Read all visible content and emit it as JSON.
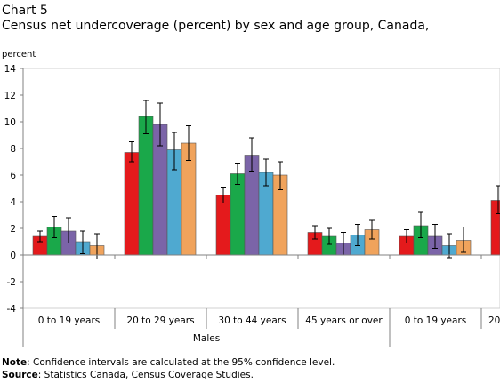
{
  "header": {
    "chart_label": "Chart 5",
    "title": "Census net undercoverage (percent) by sex and age group, Canada,"
  },
  "footer": {
    "note_label": "Note",
    "note_text": ": Confidence intervals are calculated at the 95% confidence level.",
    "source_label": "Source",
    "source_text": ": Statistics Canada, Census Coverage Studies."
  },
  "chart_data": {
    "type": "bar",
    "title": "Census net undercoverage (percent) by sex and age group, Canada,",
    "ylabel": "percent",
    "ylim": [
      -4,
      14
    ],
    "yticks": [
      -4,
      -2,
      0,
      2,
      4,
      6,
      8,
      10,
      12,
      14
    ],
    "grid": false,
    "legend": "none",
    "categories": [
      "0 to 19 years",
      "20 to 29 years",
      "30 to 44 years",
      "45 years or over",
      "0 to 19 years",
      "20"
    ],
    "groups": [
      {
        "label": "Males",
        "span": [
          0,
          3
        ]
      }
    ],
    "series": [
      {
        "color": "#e41a1c",
        "values": [
          1.4,
          7.7,
          4.5,
          1.7,
          1.4,
          4.1
        ],
        "err_low": [
          1.0,
          7.0,
          3.9,
          1.2,
          0.9,
          3.1
        ],
        "err_high": [
          1.8,
          8.5,
          5.1,
          2.2,
          1.9,
          5.2
        ]
      },
      {
        "color": "#1aa84a",
        "values": [
          2.1,
          10.4,
          6.1,
          1.4,
          2.2,
          null
        ],
        "err_low": [
          1.3,
          9.1,
          5.3,
          0.8,
          1.3,
          null
        ],
        "err_high": [
          2.9,
          11.6,
          6.9,
          2.0,
          3.2,
          null
        ]
      },
      {
        "color": "#7b64a8",
        "values": [
          1.8,
          9.8,
          7.5,
          0.9,
          1.4,
          null
        ],
        "err_low": [
          0.9,
          8.2,
          6.3,
          0.0,
          0.5,
          null
        ],
        "err_high": [
          2.8,
          11.4,
          8.8,
          1.7,
          2.3,
          null
        ]
      },
      {
        "color": "#4fa9d0",
        "values": [
          1.0,
          7.9,
          6.2,
          1.5,
          0.7,
          null
        ],
        "err_low": [
          0.1,
          6.4,
          5.2,
          0.7,
          -0.2,
          null
        ],
        "err_high": [
          1.8,
          9.2,
          7.2,
          2.3,
          1.6,
          null
        ]
      },
      {
        "color": "#f0a35c",
        "values": [
          0.7,
          8.4,
          6.0,
          1.9,
          1.1,
          null
        ],
        "err_low": [
          -0.3,
          7.1,
          4.9,
          1.2,
          0.2,
          null
        ],
        "err_high": [
          1.6,
          9.7,
          7.0,
          2.6,
          2.1,
          null
        ]
      }
    ]
  }
}
